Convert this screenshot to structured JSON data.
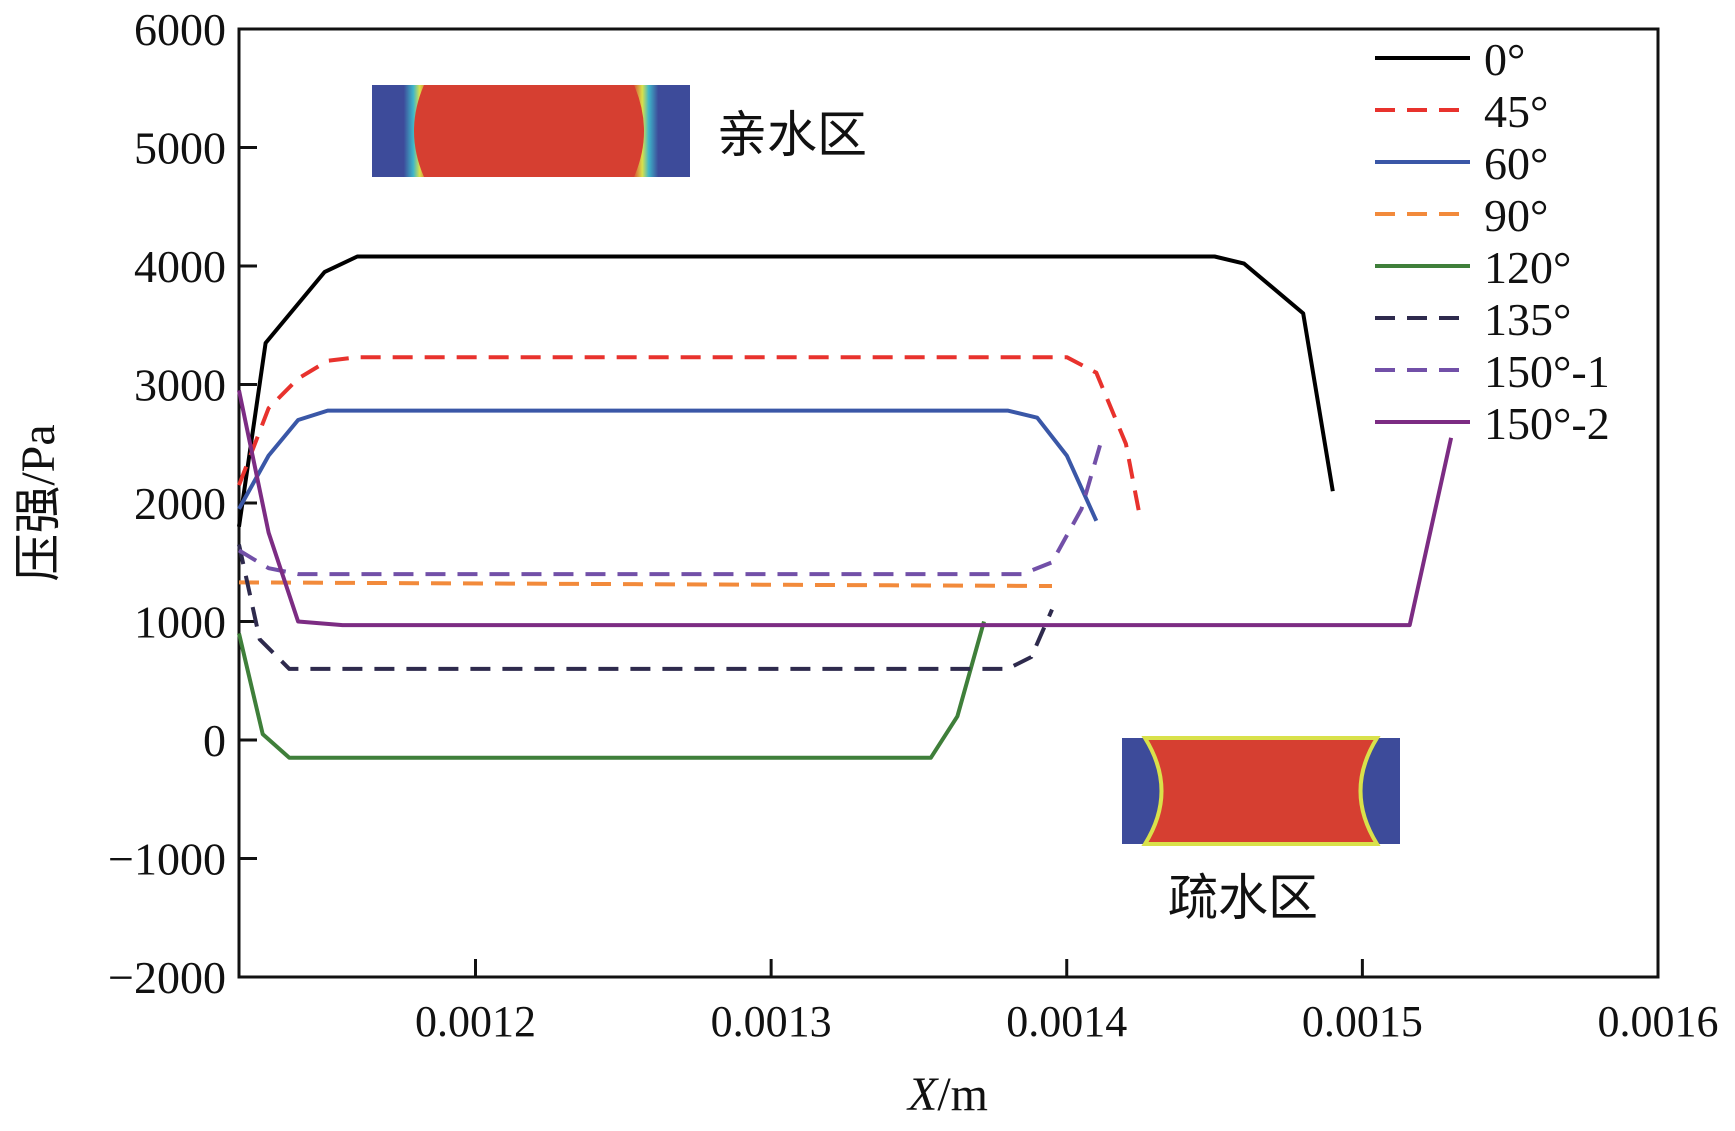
{
  "chart_data": {
    "type": "line",
    "xlabel": {
      "var": "X",
      "unit": "/m"
    },
    "ylabel": "压强/Pa",
    "xlim": [
      0.00112,
      0.0016
    ],
    "ylim": [
      -2000,
      6000
    ],
    "x_ticks": [
      {
        "value": 0.0012,
        "label": "0.0012"
      },
      {
        "value": 0.0013,
        "label": "0.0013"
      },
      {
        "value": 0.0014,
        "label": "0.0014"
      },
      {
        "value": 0.0015,
        "label": "0.0015"
      },
      {
        "value": 0.0016,
        "label": "0.0016"
      }
    ],
    "y_ticks": [
      {
        "value": 6000,
        "label": "6000"
      },
      {
        "value": 5000,
        "label": "5000"
      },
      {
        "value": 4000,
        "label": "4000"
      },
      {
        "value": 3000,
        "label": "3000"
      },
      {
        "value": 2000,
        "label": "2000"
      },
      {
        "value": 1000,
        "label": "1000"
      },
      {
        "value": 0,
        "label": "0"
      },
      {
        "value": -1000,
        "label": "−1000"
      },
      {
        "value": -2000,
        "label": "−2000"
      }
    ],
    "grid": false,
    "legend_position": "top-right",
    "series": [
      {
        "name": "0°",
        "color": "#000000",
        "dash": "solid",
        "x": [
          0.00112,
          0.001129,
          0.001149,
          0.00116,
          0.00145,
          0.00146,
          0.00148,
          0.00149
        ],
        "y": [
          1800,
          3350,
          3950,
          4080,
          4080,
          4020,
          3600,
          2100
        ]
      },
      {
        "name": "45°",
        "color": "#e8322d",
        "dash": "dashed",
        "x": [
          0.00112,
          0.00113,
          0.00114,
          0.00115,
          0.00116,
          0.0014,
          0.00141,
          0.00142,
          0.001425
        ],
        "y": [
          2150,
          2800,
          3050,
          3200,
          3230,
          3230,
          3100,
          2500,
          1850
        ]
      },
      {
        "name": "60°",
        "color": "#3a57a7",
        "dash": "solid",
        "x": [
          0.00112,
          0.00113,
          0.00114,
          0.00115,
          0.00138,
          0.00139,
          0.0014,
          0.00141
        ],
        "y": [
          1950,
          2400,
          2700,
          2780,
          2780,
          2720,
          2400,
          1850
        ]
      },
      {
        "name": "90°",
        "color": "#f28a3b",
        "dash": "dashed",
        "x": [
          0.00112,
          0.001395
        ],
        "y": [
          1330,
          1300
        ]
      },
      {
        "name": "120°",
        "color": "#3f7f3a",
        "dash": "solid",
        "x": [
          0.00112,
          0.001128,
          0.001137,
          0.001354,
          0.001363,
          0.001372
        ],
        "y": [
          900,
          50,
          -150,
          -150,
          200,
          1000
        ]
      },
      {
        "name": "135°",
        "color": "#2e2a4d",
        "dash": "dashed",
        "x": [
          0.00112,
          0.001127,
          0.001137,
          0.00138,
          0.001388,
          0.001395
        ],
        "y": [
          1650,
          850,
          600,
          600,
          700,
          1100
        ]
      },
      {
        "name": "150°-1",
        "color": "#7250a8",
        "dash": "dashed",
        "x": [
          0.00112,
          0.00113,
          0.00114,
          0.001385,
          0.001395,
          0.001405,
          0.001412
        ],
        "y": [
          1600,
          1450,
          1400,
          1400,
          1500,
          1950,
          2550
        ]
      },
      {
        "name": "150°-2",
        "color": "#7c2c83",
        "dash": "solid",
        "x": [
          0.00112,
          0.00113,
          0.00114,
          0.001155,
          0.001516,
          0.00153
        ],
        "y": [
          2950,
          1750,
          1000,
          970,
          970,
          2550
        ]
      }
    ],
    "annotations": [
      {
        "text": "亲水区",
        "anchor": "upper-left"
      },
      {
        "text": "疏水区",
        "anchor": "lower-right"
      }
    ]
  }
}
